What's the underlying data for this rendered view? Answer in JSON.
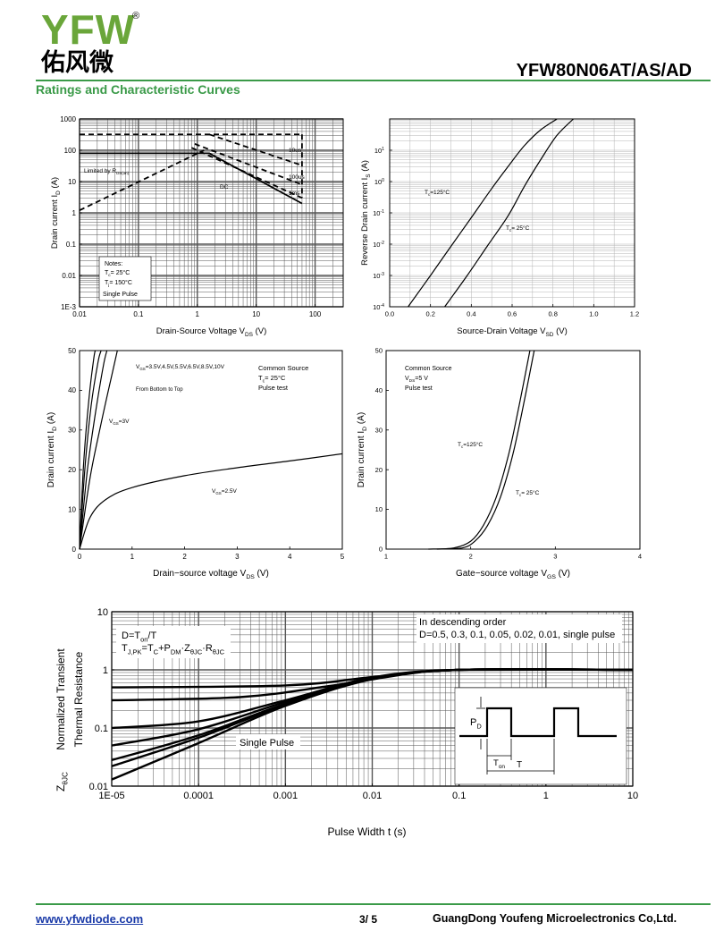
{
  "header": {
    "logo_text": "YFW",
    "logo_registered": "®",
    "logo_chinese": "佑风微",
    "part_number": "YFW80N06AT/AS/AD",
    "section_title": "Ratings and Characteristic Curves",
    "accent_color": "#3a9a48",
    "logo_color": "#6aa63a"
  },
  "footer": {
    "website": "www.yfwdiode.com",
    "page": "3/ 5",
    "company": "GuangDong Youfeng Microelectronics Co,Ltd."
  },
  "chart_data": [
    {
      "id": "soa",
      "type": "line",
      "xlabel": "Drain-Source Voltage V",
      "xlabel_sub": "DS",
      "xlabel_tail": " (V)",
      "ylabel": "Drain current I",
      "ylabel_sub": "D",
      "ylabel_tail": " (A)",
      "x_scale": "log",
      "y_scale": "log",
      "xlim": [
        0.01,
        300
      ],
      "ylim": [
        0.001,
        1000
      ],
      "x_ticks": [
        {
          "v": 0.01,
          "label": "0.01"
        },
        {
          "v": 0.1,
          "label": "0.1"
        },
        {
          "v": 1,
          "label": "1"
        },
        {
          "v": 10,
          "label": "10"
        },
        {
          "v": 100,
          "label": "100"
        }
      ],
      "y_ticks": [
        {
          "v": 0.001,
          "label": "1E-3"
        },
        {
          "v": 0.01,
          "label": "0.01"
        },
        {
          "v": 0.1,
          "label": "0.1"
        },
        {
          "v": 1,
          "label": "1"
        },
        {
          "v": 10,
          "label": "10"
        },
        {
          "v": 100,
          "label": "100"
        },
        {
          "v": 1000,
          "label": "1000"
        }
      ],
      "grid": true,
      "series": [
        {
          "name": "Limited by R",
          "style": "dashed",
          "x": [
            0.01,
            1.3
          ],
          "y": [
            1.2,
            100
          ]
        },
        {
          "name": "",
          "style": "dashed",
          "x": [
            0.01,
            60
          ],
          "y": [
            320,
            320
          ]
        },
        {
          "name": "",
          "style": "dashed",
          "x": [
            60,
            60
          ],
          "y": [
            320,
            3
          ]
        },
        {
          "name": "10us",
          "style": "dashed",
          "x": [
            1.6,
            60
          ],
          "y": [
            320,
            33
          ]
        },
        {
          "name": "100us",
          "style": "dashed",
          "x": [
            0.9,
            60
          ],
          "y": [
            160,
            8
          ]
        },
        {
          "name": "1ms",
          "style": "dashed",
          "x": [
            0.8,
            60
          ],
          "y": [
            120,
            3
          ]
        },
        {
          "name": "DC",
          "style": "solid",
          "x": [
            0.01,
            1.6,
            60
          ],
          "y": [
            80,
            80,
            2
          ]
        }
      ],
      "annotations": [
        {
          "text": "Limited by R",
          "sub": "DS(on)",
          "x": 0.011,
          "y": 17
        },
        {
          "text": "10us",
          "x": 65,
          "y": 42
        },
        {
          "text": "100us",
          "x": 65,
          "y": 12
        },
        {
          "text": "1ms",
          "x": 65,
          "y": 4
        },
        {
          "text": "DC",
          "x": 3.5,
          "y": 9
        }
      ],
      "notes": [
        "Notes:",
        "T",
        "c",
        "= 25°C",
        "T",
        "j",
        "= 150°C",
        "Single Pulse"
      ]
    },
    {
      "id": "reverse-drain",
      "type": "line",
      "xlabel": "Source-Drain Voltage V",
      "xlabel_sub": "SD",
      "xlabel_tail": " (V)",
      "ylabel": "Reverse Drain current I",
      "ylabel_sub": "S",
      "ylabel_tail": " (A)",
      "x_scale": "linear",
      "y_scale": "log",
      "xlim": [
        0.0,
        1.2
      ],
      "ylim": [
        0.0001,
        100
      ],
      "x_ticks": [
        {
          "v": 0.0,
          "label": "0.0"
        },
        {
          "v": 0.2,
          "label": "0.2"
        },
        {
          "v": 0.4,
          "label": "0.4"
        },
        {
          "v": 0.6,
          "label": "0.6"
        },
        {
          "v": 0.8,
          "label": "0.8"
        },
        {
          "v": 1.0,
          "label": "1.0"
        },
        {
          "v": 1.2,
          "label": "1.2"
        }
      ],
      "y_tick_mantissa": "10",
      "y_tick_exponents": [
        "-4",
        "-3",
        "-2",
        "-1",
        "0",
        "1"
      ],
      "grid": true,
      "series": [
        {
          "name": "T",
          "name_sub": "c",
          "name_tail": "=125°C",
          "x": [
            0.09,
            0.2,
            0.3,
            0.4,
            0.5,
            0.58,
            0.66,
            0.74,
            0.82
          ],
          "y": [
            0.0001,
            0.001,
            0.0085,
            0.07,
            0.6,
            3,
            14,
            45,
            100
          ]
        },
        {
          "name": "T",
          "name_sub": "c",
          "name_tail": "= 25°C",
          "x": [
            0.27,
            0.38,
            0.48,
            0.58,
            0.66,
            0.74,
            0.82,
            0.9
          ],
          "y": [
            0.0001,
            0.001,
            0.009,
            0.08,
            0.7,
            5,
            30,
            100
          ]
        }
      ]
    },
    {
      "id": "output",
      "type": "line",
      "xlabel": "Drain−source voltage V",
      "xlabel_sub": "DS",
      "xlabel_tail": " (V)",
      "ylabel": "Drain current I",
      "ylabel_sub": "D",
      "ylabel_tail": " (A)",
      "x_scale": "linear",
      "y_scale": "linear",
      "xlim": [
        0,
        5
      ],
      "ylim": [
        0,
        50
      ],
      "x_ticks": [
        {
          "v": 0,
          "label": "0"
        },
        {
          "v": 1,
          "label": "1"
        },
        {
          "v": 2,
          "label": "2"
        },
        {
          "v": 3,
          "label": "3"
        },
        {
          "v": 4,
          "label": "4"
        },
        {
          "v": 5,
          "label": "5"
        }
      ],
      "y_ticks": [
        {
          "v": 0,
          "label": "0"
        },
        {
          "v": 10,
          "label": "10"
        },
        {
          "v": 20,
          "label": "20"
        },
        {
          "v": 30,
          "label": "30"
        },
        {
          "v": 40,
          "label": "40"
        },
        {
          "v": 50,
          "label": "50"
        }
      ],
      "grid": false,
      "series": [
        {
          "name": "V",
          "name_sub": "GS",
          "name_tail": "=2.5V",
          "x": [
            0,
            0.2,
            0.5,
            1,
            2,
            3,
            4,
            5
          ],
          "y": [
            0,
            8,
            12.5,
            15.5,
            18.5,
            20.5,
            22.2,
            24
          ]
        },
        {
          "name": "V",
          "name_sub": "GS",
          "name_tail": "=3V",
          "x": [
            0,
            0.2,
            0.4,
            0.6,
            0.72
          ],
          "y": [
            0,
            18,
            31,
            43,
            50
          ]
        },
        {
          "name": "",
          "x": [
            0,
            0.15,
            0.3,
            0.45,
            0.52
          ],
          "y": [
            0,
            20,
            34,
            46,
            50
          ]
        },
        {
          "name": "",
          "x": [
            0,
            0.1,
            0.22,
            0.35,
            0.41
          ],
          "y": [
            0,
            20,
            36,
            47,
            50
          ]
        },
        {
          "name": "",
          "x": [
            0,
            0.08,
            0.18,
            0.27,
            0.3
          ],
          "y": [
            0,
            22,
            38,
            48,
            50
          ]
        }
      ],
      "legend": [
        "V",
        "GS",
        "=3.5V,4.5V,5.5V,6.5V,8.5V,10V"
      ],
      "note_order": "From Bottom to Top",
      "conditions": [
        "Common Source",
        "T",
        "c",
        "= 25°C",
        "Pulse test"
      ]
    },
    {
      "id": "transfer",
      "type": "line",
      "xlabel": "Gate−source voltage V",
      "xlabel_sub": "GS",
      "xlabel_tail": " (V)",
      "ylabel": "Drain current I",
      "ylabel_sub": "D",
      "ylabel_tail": " (A)",
      "x_scale": "linear",
      "y_scale": "linear",
      "xlim": [
        1,
        4
      ],
      "ylim": [
        0,
        50
      ],
      "x_ticks": [
        {
          "v": 1,
          "label": "1"
        },
        {
          "v": 2,
          "label": "2"
        },
        {
          "v": 3,
          "label": "3"
        },
        {
          "v": 4,
          "label": "4"
        }
      ],
      "y_ticks": [
        {
          "v": 0,
          "label": "0"
        },
        {
          "v": 10,
          "label": "10"
        },
        {
          "v": 20,
          "label": "20"
        },
        {
          "v": 30,
          "label": "30"
        },
        {
          "v": 40,
          "label": "40"
        },
        {
          "v": 50,
          "label": "50"
        }
      ],
      "grid": false,
      "series": [
        {
          "name": "T",
          "name_sub": "c",
          "name_tail": "=125°C",
          "x": [
            1.5,
            1.8,
            2.0,
            2.15,
            2.3,
            2.45,
            2.58,
            2.7
          ],
          "y": [
            0,
            0.3,
            2,
            6,
            13,
            24,
            37,
            50
          ]
        },
        {
          "name": "T",
          "name_sub": "c",
          "name_tail": "= 25°C",
          "x": [
            1.6,
            1.9,
            2.05,
            2.2,
            2.35,
            2.5,
            2.63,
            2.75
          ],
          "y": [
            0,
            0.3,
            2,
            6,
            13,
            24,
            37,
            50
          ]
        }
      ],
      "conditions": [
        "Common Source",
        "V",
        "DS",
        "=5 V",
        "Pulse test"
      ]
    },
    {
      "id": "thermal",
      "type": "line",
      "xlabel": "Pulse Width t (s)",
      "ylabel_line1": "Normalized Transient",
      "ylabel_line2": "Thermal Resistance",
      "ylabel_prefix": "Z",
      "ylabel_sub": "θJC",
      "x_scale": "log",
      "y_scale": "log",
      "xlim": [
        1e-05,
        10
      ],
      "ylim": [
        0.01,
        10
      ],
      "x_ticks": [
        {
          "v": 1e-05,
          "label": "1E-05"
        },
        {
          "v": 0.0001,
          "label": "0.0001"
        },
        {
          "v": 0.001,
          "label": "0.001"
        },
        {
          "v": 0.01,
          "label": "0.01"
        },
        {
          "v": 0.1,
          "label": "0.1"
        },
        {
          "v": 1,
          "label": "1"
        },
        {
          "v": 10,
          "label": "10"
        }
      ],
      "y_ticks": [
        {
          "v": 0.01,
          "label": "0.01"
        },
        {
          "v": 0.1,
          "label": "0.1"
        },
        {
          "v": 1,
          "label": "1"
        },
        {
          "v": 10,
          "label": "10"
        }
      ],
      "grid": true,
      "series": [
        {
          "name": "D=0.5",
          "x": [
            1e-05,
            0.001,
            0.01,
            0.1,
            10
          ],
          "y": [
            0.5,
            0.54,
            0.75,
            1,
            1
          ]
        },
        {
          "name": "D=0.3",
          "x": [
            1e-05,
            0.0003,
            0.003,
            0.03,
            0.1,
            10
          ],
          "y": [
            0.3,
            0.34,
            0.52,
            0.88,
            1,
            1
          ]
        },
        {
          "name": "D=0.1",
          "x": [
            1e-05,
            0.0001,
            0.001,
            0.01,
            0.1,
            10
          ],
          "y": [
            0.1,
            0.13,
            0.3,
            0.74,
            1,
            1
          ]
        },
        {
          "name": "D=0.05",
          "x": [
            1e-05,
            0.0001,
            0.001,
            0.01,
            0.1,
            10
          ],
          "y": [
            0.05,
            0.095,
            0.28,
            0.72,
            1,
            1
          ]
        },
        {
          "name": "D=0.02",
          "x": [
            1e-05,
            0.0001,
            0.001,
            0.01,
            0.1,
            10
          ],
          "y": [
            0.028,
            0.075,
            0.26,
            0.7,
            1,
            1
          ]
        },
        {
          "name": "D=0.01",
          "x": [
            1e-05,
            0.0001,
            0.001,
            0.01,
            0.1,
            10
          ],
          "y": [
            0.022,
            0.068,
            0.25,
            0.7,
            1,
            1
          ]
        },
        {
          "name": "single pulse",
          "x": [
            1e-05,
            0.0001,
            0.001,
            0.01,
            0.1,
            10
          ],
          "y": [
            0.013,
            0.055,
            0.24,
            0.69,
            1,
            1
          ]
        }
      ],
      "formula_lines": [
        [
          "D=T",
          "on",
          "/T"
        ],
        [
          "T",
          "J,PK",
          "=T",
          "C",
          "+P",
          "DM",
          "·Z",
          "θJC",
          "·R",
          "θJC"
        ]
      ],
      "legend_lines": [
        "In descending order",
        "D=0.5, 0.3, 0.1, 0.05, 0.02, 0.01, single pulse"
      ],
      "single_pulse_label": "Single Pulse",
      "inset": {
        "pd": "P",
        "pd_sub": "D",
        "ton": "T",
        "ton_sub": "on",
        "t": "T"
      }
    }
  ]
}
